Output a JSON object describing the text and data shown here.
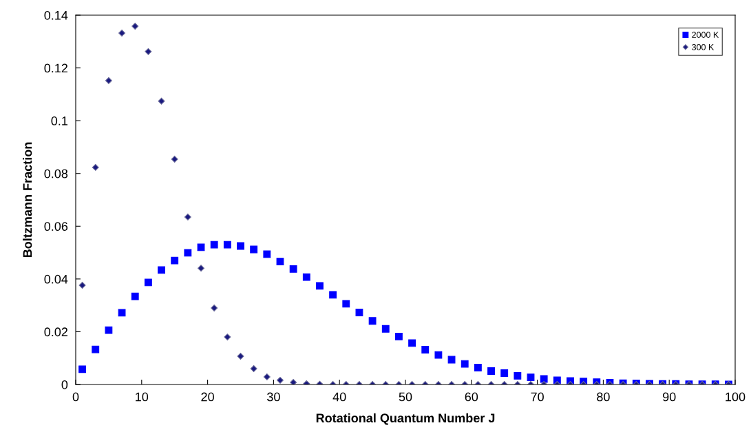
{
  "chart_data": {
    "type": "scatter",
    "xlabel": "Rotational Quantum Number J",
    "ylabel": "Boltzmann Fraction",
    "x": [
      1,
      3,
      5,
      7,
      9,
      11,
      13,
      15,
      17,
      19,
      21,
      23,
      25,
      27,
      29,
      31,
      33,
      35,
      37,
      39,
      41,
      43,
      45,
      47,
      49,
      51,
      53,
      55,
      57,
      59,
      61,
      63,
      65,
      67,
      69,
      71,
      73,
      75,
      77,
      79,
      81,
      83,
      85,
      87,
      89,
      91,
      93,
      95,
      97,
      99
    ],
    "series": [
      {
        "name": "2000 K",
        "color": "#0000ff",
        "marker": "square",
        "values": [
          0.0058,
          0.0133,
          0.0206,
          0.0272,
          0.0334,
          0.0387,
          0.0434,
          0.047,
          0.0499,
          0.052,
          0.053,
          0.053,
          0.0525,
          0.0512,
          0.0494,
          0.0466,
          0.0438,
          0.0407,
          0.0374,
          0.034,
          0.0306,
          0.0273,
          0.0241,
          0.0211,
          0.0182,
          0.0157,
          0.0132,
          0.0112,
          0.0094,
          0.0078,
          0.0064,
          0.0051,
          0.0043,
          0.0033,
          0.0027,
          0.0021,
          0.0016,
          0.0013,
          0.0011,
          0.0009,
          0.0007,
          0.0005,
          0.0004,
          0.0003,
          0.0002,
          0.0002,
          0.0001,
          0.0001,
          0.0001,
          0.0
        ]
      },
      {
        "name": "300 K",
        "color": "#1a1a80",
        "marker": "diamond",
        "values": [
          0.0376,
          0.0823,
          0.1152,
          0.1332,
          0.1358,
          0.1262,
          0.1074,
          0.0854,
          0.0635,
          0.0441,
          0.029,
          0.018,
          0.0107,
          0.006,
          0.0029,
          0.0016,
          0.0008,
          0.0003,
          0.0001,
          0,
          0,
          0,
          0,
          0,
          0,
          0,
          0,
          0,
          0,
          0,
          0,
          0,
          0,
          0,
          0,
          0,
          0,
          0,
          0,
          0,
          0,
          0,
          0,
          0,
          0,
          0,
          0,
          0,
          0,
          0
        ]
      }
    ],
    "xlim": [
      0,
      100
    ],
    "xticks": [
      0,
      10,
      20,
      30,
      40,
      50,
      60,
      70,
      80,
      90,
      100
    ],
    "ylim": [
      0,
      0.14
    ],
    "yticks": [
      0,
      0.02,
      0.04,
      0.06,
      0.08,
      0.1,
      0.12,
      0.14
    ],
    "grid": false,
    "legend": "top right"
  }
}
